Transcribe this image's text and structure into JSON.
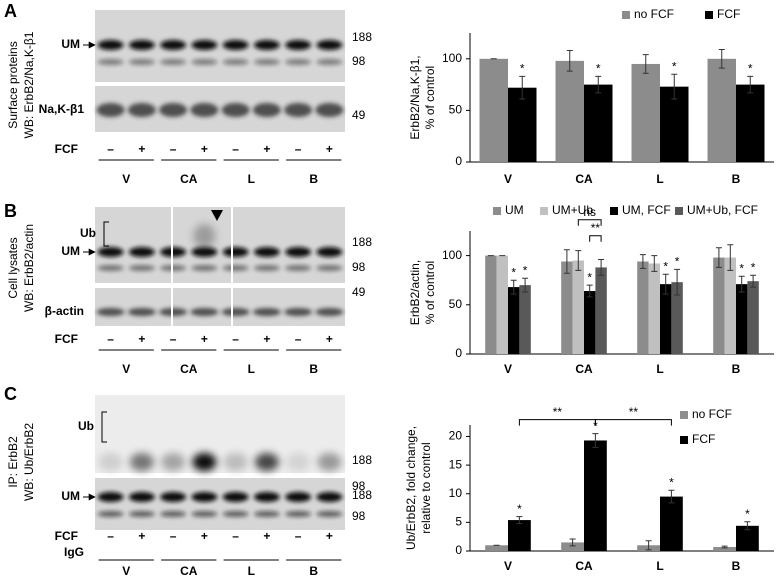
{
  "blots": [
    {
      "letter": "A",
      "title": "Surface proteins",
      "subtitle": "WB: ErbB2/Na,K-β1",
      "band_label": "UM",
      "markers_top": [
        188,
        98
      ],
      "loading_label": "Na,K-β1",
      "markers_bottom": [
        49
      ],
      "treatment": "FCF",
      "signs": [
        "–",
        "+",
        "–",
        "+",
        "–",
        "+",
        "–",
        "+"
      ],
      "groups": [
        "V",
        "CA",
        "L",
        "B"
      ]
    },
    {
      "letter": "B",
      "title": "Cell lysates",
      "subtitle": "WB: ErbB2/actin",
      "ub_label": "Ub",
      "band_label": "UM",
      "markers_top": [
        188,
        98
      ],
      "loading_label": "β-actin",
      "markers_bottom": [
        49
      ],
      "treatment": "FCF",
      "signs": [
        "–",
        "+",
        "–",
        "+",
        "–",
        "+",
        "–",
        "+"
      ],
      "groups": [
        "V",
        "CA",
        "L",
        "B"
      ]
    },
    {
      "letter": "C",
      "title": "IP: ErbB2",
      "subtitle": "WB: Ub/ErbB2",
      "ub_label": "Ub",
      "band_label": "UM",
      "markers_top": [
        188,
        98
      ],
      "markers_bottom": [
        188,
        98
      ],
      "treatment": "FCF",
      "control": "IgG",
      "signs": [
        "–",
        "+",
        "–",
        "+",
        "–",
        "+",
        "–",
        "+"
      ],
      "groups": [
        "V",
        "CA",
        "L",
        "B"
      ]
    }
  ],
  "chart_data": [
    {
      "type": "bar",
      "ylabel": [
        "ErbB2/Na,K-β1,",
        "% of control"
      ],
      "categories": [
        "V",
        "CA",
        "L",
        "B"
      ],
      "ylim": [
        0,
        125
      ],
      "yticks": [
        0,
        50,
        100
      ],
      "series": [
        {
          "name": "no FCF",
          "color": "#8c8c8c",
          "values": [
            100,
            98,
            95,
            100
          ],
          "errors": [
            0,
            10,
            9,
            9
          ]
        },
        {
          "name": "FCF",
          "color": "#000000",
          "values": [
            72,
            75,
            73,
            75
          ],
          "errors": [
            11,
            8,
            12,
            8
          ],
          "stars": [
            "*",
            "*",
            "*",
            "*"
          ]
        }
      ]
    },
    {
      "type": "bar",
      "ylabel": [
        "ErbB2/actin,",
        "% of control"
      ],
      "categories": [
        "V",
        "CA",
        "L",
        "B"
      ],
      "ylim": [
        0,
        125
      ],
      "yticks": [
        0,
        50,
        100
      ],
      "series": [
        {
          "name": "UM",
          "color": "#8c8c8c",
          "values": [
            100,
            94,
            94,
            98
          ],
          "errors": [
            0,
            12,
            7,
            10
          ]
        },
        {
          "name": "UM+Ub",
          "color": "#c0c0c0",
          "values": [
            100,
            95,
            92,
            98
          ],
          "errors": [
            0,
            10,
            8,
            13
          ]
        },
        {
          "name": "UM, FCF",
          "color": "#000000",
          "values": [
            68,
            64,
            71,
            71
          ],
          "errors": [
            7,
            6,
            10,
            8
          ],
          "stars": [
            "*",
            "*",
            "*",
            "*"
          ]
        },
        {
          "name": "UM+Ub, FCF",
          "color": "#595959",
          "values": [
            70,
            88,
            73,
            74
          ],
          "errors": [
            7,
            8,
            13,
            6
          ],
          "stars": [
            "*",
            null,
            "*",
            "*"
          ]
        }
      ],
      "brackets": [
        {
          "text": "**",
          "from": [
            2,
            1
          ],
          "to": [
            3,
            1
          ]
        },
        {
          "text": "ns",
          "from": [
            1,
            1
          ],
          "to": [
            3,
            1
          ]
        }
      ]
    },
    {
      "type": "bar",
      "ylabel": [
        "Ub/ErbB2, fold change,",
        "relative to control"
      ],
      "categories": [
        "V",
        "CA",
        "L",
        "B"
      ],
      "ylim": [
        0,
        22
      ],
      "yticks": [
        0,
        5,
        10,
        15,
        20
      ],
      "series": [
        {
          "name": "no FCF",
          "color": "#8c8c8c",
          "values": [
            1,
            1.5,
            1,
            0.7
          ],
          "errors": [
            0,
            0.6,
            0.8,
            0.15
          ]
        },
        {
          "name": "FCF",
          "color": "#000000",
          "values": [
            5.4,
            19.3,
            9.5,
            4.4
          ],
          "errors": [
            0.6,
            1.2,
            1.1,
            0.7
          ],
          "stars": [
            "*",
            "*",
            "*",
            "*"
          ]
        }
      ],
      "brackets": [
        {
          "text": "**",
          "from": [
            1,
            0
          ],
          "to": [
            1,
            1
          ]
        },
        {
          "text": "**",
          "from": [
            1,
            1
          ],
          "to": [
            1,
            2
          ]
        }
      ]
    }
  ]
}
